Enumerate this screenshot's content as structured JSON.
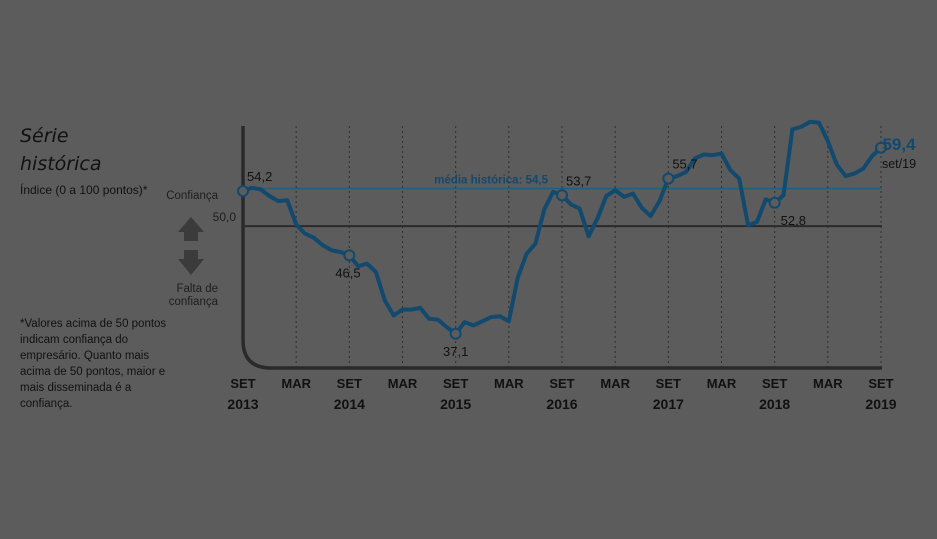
{
  "heading": {
    "title_line1": "Série",
    "title_line2": "histórica",
    "subtitle": "Índice (0 a 100 pontos)*"
  },
  "zones": {
    "up": "Confiança",
    "down_line1": "Falta de",
    "down_line2": "confiança"
  },
  "footnote": "*Valores acima de 50 pontos indicam confiança do empresário. Quanto mais acima de 50 pontos, maior e mais disseminada é a confiança.",
  "colors": {
    "line": "#12496e",
    "average_line": "#1f5f7a",
    "reference_line": "#2a2a2a",
    "background": "#5c5c5c"
  },
  "chart_data": {
    "type": "line",
    "x_unit": "months since SET 2013",
    "ylim": [
      33,
      62
    ],
    "x_ticks": [
      {
        "pos": 0,
        "month": "SET",
        "year": "2013"
      },
      {
        "pos": 6,
        "month": "MAR",
        "year": ""
      },
      {
        "pos": 12,
        "month": "SET",
        "year": "2014"
      },
      {
        "pos": 18,
        "month": "MAR",
        "year": ""
      },
      {
        "pos": 24,
        "month": "SET",
        "year": "2015"
      },
      {
        "pos": 30,
        "month": "MAR",
        "year": ""
      },
      {
        "pos": 36,
        "month": "SET",
        "year": "2016"
      },
      {
        "pos": 42,
        "month": "MAR",
        "year": ""
      },
      {
        "pos": 48,
        "month": "SET",
        "year": "2017"
      },
      {
        "pos": 54,
        "month": "MAR",
        "year": ""
      },
      {
        "pos": 60,
        "month": "SET",
        "year": "2018"
      },
      {
        "pos": 66,
        "month": "MAR",
        "year": ""
      },
      {
        "pos": 72,
        "month": "SET",
        "year": "2019"
      }
    ],
    "reference": {
      "value": 50.0,
      "label": "50,0"
    },
    "average": {
      "value": 54.5,
      "label": "média histórica: 54,5"
    },
    "series": [
      {
        "values": [
          54.2,
          54.6,
          54.4,
          53.6,
          53.0,
          53.1,
          50.2,
          49.1,
          48.6,
          47.7,
          47.1,
          46.9,
          46.5,
          45.2,
          45.5,
          44.5,
          41.1,
          39.3,
          40.0,
          40.0,
          40.2,
          38.9,
          38.8,
          37.9,
          37.1,
          38.5,
          38.1,
          38.6,
          39.1,
          39.2,
          38.6,
          43.8,
          46.7,
          47.9,
          52.0,
          54.1,
          53.7,
          52.6,
          52.1,
          48.8,
          50.9,
          53.6,
          54.3,
          53.5,
          53.9,
          52.2,
          51.2,
          53.0,
          55.7,
          56.0,
          56.5,
          58.1,
          58.6,
          58.5,
          58.7,
          56.7,
          55.7,
          50.1,
          50.5,
          53.2,
          52.8,
          53.7,
          61.6,
          61.9,
          62.5,
          62.4,
          60.2,
          57.4,
          56.0,
          56.3,
          56.9,
          58.4,
          59.4
        ]
      }
    ],
    "annotations": [
      {
        "index": 0,
        "label": "54,2",
        "pos": "above-right"
      },
      {
        "index": 12,
        "label": "46,5",
        "pos": "below-left"
      },
      {
        "index": 24,
        "label": "37,1",
        "pos": "below"
      },
      {
        "index": 36,
        "label": "53,7",
        "pos": "above-right"
      },
      {
        "index": 48,
        "label": "55,7",
        "pos": "above-right"
      },
      {
        "index": 60,
        "label": "52,8",
        "pos": "below-right"
      }
    ],
    "last_point": {
      "index": 72,
      "value_label": "59,4",
      "date_label": "set/19"
    }
  }
}
